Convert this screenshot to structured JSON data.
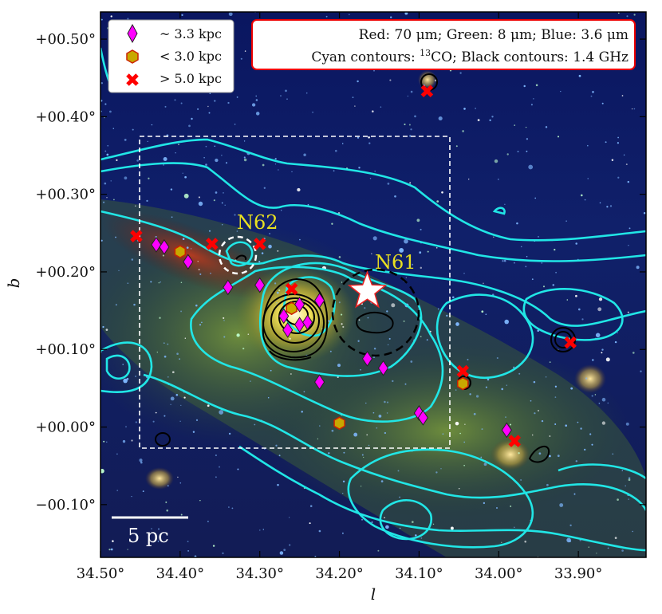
{
  "axes": {
    "xlabel": "l",
    "ylabel": "b",
    "x_ticks": [
      {
        "value": 34.5,
        "label": "34.50°"
      },
      {
        "value": 34.4,
        "label": "34.40°"
      },
      {
        "value": 34.3,
        "label": "34.30°"
      },
      {
        "value": 34.2,
        "label": "34.20°"
      },
      {
        "value": 34.1,
        "label": "34.10°"
      },
      {
        "value": 34.0,
        "label": "34.00°"
      },
      {
        "value": 33.9,
        "label": "33.90°"
      }
    ],
    "y_ticks": [
      {
        "value": 0.5,
        "label": "+00.50°"
      },
      {
        "value": 0.4,
        "label": "+00.40°"
      },
      {
        "value": 0.3,
        "label": "+00.30°"
      },
      {
        "value": 0.2,
        "label": "+00.20°"
      },
      {
        "value": 0.1,
        "label": "+00.10°"
      },
      {
        "value": 0.0,
        "label": "+00.00°"
      },
      {
        "value": -0.1,
        "label": "−00.10°"
      }
    ],
    "xlim": [
      34.5,
      33.815
    ],
    "ylim": [
      -0.168,
      0.535
    ]
  },
  "legend": {
    "entries": [
      {
        "marker": "diamond",
        "color": "#ff00ff",
        "label": "~ 3.3 kpc"
      },
      {
        "marker": "hexagon",
        "color": "#c8a800",
        "label": "< 3.0 kpc"
      },
      {
        "marker": "cross",
        "color": "#ff0000",
        "label": "> 5.0 kpc"
      }
    ]
  },
  "info_box": {
    "line1": "Red: 70 μm; Green: 8 μm; Blue: 3.6 μm",
    "line2_prefix": "Cyan contours: ",
    "line2_sup": "13",
    "line2_suffix": "CO; Black contours: 1.4 GHz"
  },
  "regions": {
    "n61_label": "N61",
    "n62_label": "N62"
  },
  "scalebar": {
    "label": "5 pc"
  },
  "colors": {
    "contour_co": "#21e6e6",
    "contour_radio": "#000000",
    "star": "#ffffff",
    "box_border": "#ffffff",
    "region_label": "#e8e020"
  },
  "markers": {
    "diamonds": [
      [
        34.43,
        0.235
      ],
      [
        34.42,
        0.232
      ],
      [
        34.39,
        0.213
      ],
      [
        34.34,
        0.18
      ],
      [
        34.3,
        0.183
      ],
      [
        34.27,
        0.143
      ],
      [
        34.265,
        0.125
      ],
      [
        34.25,
        0.158
      ],
      [
        34.25,
        0.132
      ],
      [
        34.24,
        0.135
      ],
      [
        34.225,
        0.163
      ],
      [
        34.225,
        0.058
      ],
      [
        34.165,
        0.088
      ],
      [
        34.145,
        0.076
      ],
      [
        34.1,
        0.018
      ],
      [
        34.095,
        0.012
      ],
      [
        33.99,
        -0.004
      ]
    ],
    "hexagons": [
      [
        34.4,
        0.226
      ],
      [
        34.26,
        0.153
      ],
      [
        34.2,
        0.005
      ],
      [
        34.045,
        0.056
      ]
    ],
    "crosses": [
      [
        34.455,
        0.246
      ],
      [
        34.36,
        0.236
      ],
      [
        34.3,
        0.236
      ],
      [
        34.26,
        0.178
      ],
      [
        34.09,
        0.433
      ],
      [
        34.045,
        0.072
      ],
      [
        33.98,
        -0.018
      ],
      [
        33.91,
        0.109
      ]
    ],
    "star": [
      34.165,
      0.175
    ]
  }
}
